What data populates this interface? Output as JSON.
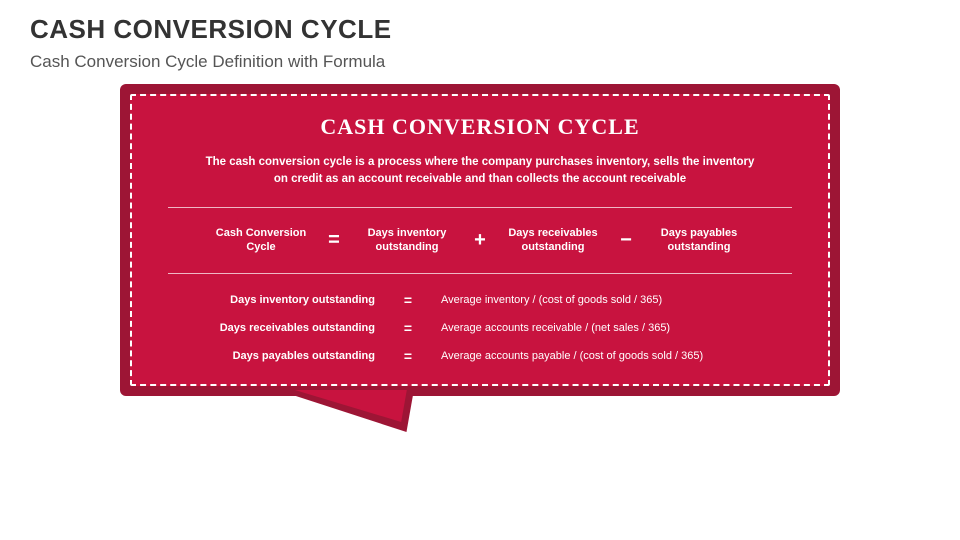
{
  "page": {
    "title": "CASH CONVERSION CYCLE",
    "subtitle": "Cash Conversion Cycle Definition with Formula"
  },
  "bubble": {
    "title": "CASH CONVERSION CYCLE",
    "description": "The cash conversion cycle is a process where the company purchases inventory, sells the inventory on credit as an account receivable and than collects the account receivable",
    "outer_bg": "#9d1535",
    "inner_bg": "#c8133f",
    "dash_color": "#ffffff",
    "text_color": "#ffffff"
  },
  "formula": {
    "terms": [
      "Cash Conversion Cycle",
      "Days inventory outstanding",
      "Days receivables outstanding",
      "Days payables outstanding"
    ],
    "operators": [
      "=",
      "+",
      "−"
    ]
  },
  "definitions": [
    {
      "left": "Days inventory outstanding",
      "eq": "=",
      "right": "Average inventory / (cost of goods sold / 365)"
    },
    {
      "left": "Days receivables outstanding",
      "eq": "=",
      "right": "Average accounts receivable / (net sales / 365)"
    },
    {
      "left": "Days payables outstanding",
      "eq": "=",
      "right": "Average accounts payable / (cost of goods sold / 365)"
    }
  ],
  "style": {
    "page_bg": "#ffffff",
    "title_color": "#333333",
    "subtitle_color": "#555555",
    "title_fontsize": 26,
    "subtitle_fontsize": 17,
    "bubble_title_fontsize": 22,
    "body_fontsize": 11
  }
}
